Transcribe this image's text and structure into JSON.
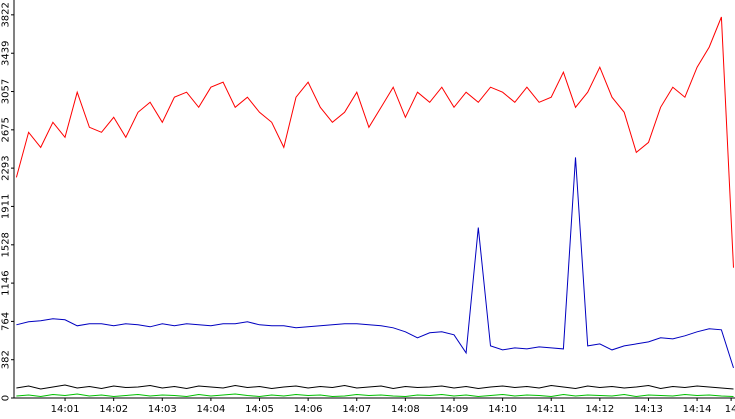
{
  "chart_data": {
    "type": "line",
    "x": [
      0,
      0.25,
      0.5,
      0.75,
      1,
      1.25,
      1.5,
      1.75,
      2,
      2.25,
      2.5,
      2.75,
      3,
      3.25,
      3.5,
      3.75,
      4,
      4.25,
      4.5,
      4.75,
      5,
      5.25,
      5.5,
      5.75,
      6,
      6.25,
      6.5,
      6.75,
      7,
      7.25,
      7.5,
      7.75,
      8,
      8.25,
      8.5,
      8.75,
      9,
      9.25,
      9.5,
      9.75,
      10,
      10.25,
      10.5,
      10.75,
      11,
      11.25,
      11.5,
      11.75,
      12,
      12.25,
      12.5,
      12.75,
      13,
      13.25,
      13.5,
      13.75,
      14,
      14.25,
      14.5,
      14.75
    ],
    "series": [
      {
        "color": "#ff0000",
        "values": [
          2200,
          2650,
          2500,
          2750,
          2600,
          3050,
          2700,
          2650,
          2800,
          2600,
          2850,
          2950,
          2750,
          3000,
          3050,
          2900,
          3100,
          3150,
          2900,
          3000,
          2850,
          2750,
          2500,
          3000,
          3150,
          2900,
          2750,
          2850,
          3050,
          2700,
          2900,
          3100,
          2800,
          3050,
          2950,
          3100,
          2900,
          3050,
          2950,
          3100,
          3050,
          2950,
          3100,
          2950,
          3000,
          3250,
          2900,
          3050,
          3300,
          3000,
          2850,
          2450,
          2550,
          2900,
          3100,
          3000,
          3300,
          3500,
          3800,
          1300
        ]
      },
      {
        "color": "#0000c0",
        "values": [
          730,
          760,
          770,
          790,
          780,
          720,
          740,
          740,
          720,
          740,
          730,
          710,
          740,
          720,
          740,
          730,
          720,
          740,
          740,
          760,
          730,
          720,
          720,
          700,
          710,
          720,
          730,
          740,
          740,
          730,
          720,
          700,
          660,
          600,
          650,
          660,
          630,
          450,
          1700,
          520,
          480,
          500,
          490,
          510,
          500,
          490,
          2400,
          520,
          540,
          480,
          520,
          540,
          560,
          600,
          590,
          620,
          660,
          690,
          680,
          300
        ]
      },
      {
        "color": "#000000",
        "values": [
          100,
          120,
          90,
          110,
          130,
          100,
          115,
          95,
          120,
          105,
          110,
          125,
          100,
          115,
          95,
          120,
          110,
          100,
          125,
          105,
          115,
          95,
          110,
          120,
          100,
          115,
          105,
          125,
          100,
          110,
          120,
          95,
          115,
          105,
          110,
          120,
          100,
          115,
          95,
          110,
          120,
          105,
          115,
          100,
          125,
          110,
          95,
          120,
          105,
          115,
          100,
          110,
          125,
          95,
          115,
          105,
          120,
          110,
          100,
          90
        ]
      },
      {
        "color": "#00c000",
        "values": [
          20,
          30,
          15,
          35,
          25,
          40,
          20,
          30,
          15,
          25,
          35,
          20,
          30,
          25,
          15,
          35,
          20,
          30,
          40,
          25,
          15,
          30,
          20,
          35,
          25,
          30,
          15,
          20,
          35,
          25,
          30,
          20,
          15,
          30,
          25,
          35,
          20,
          30,
          15,
          25,
          35,
          20,
          30,
          25,
          15,
          35,
          20,
          30,
          25,
          20,
          35,
          15,
          30,
          25,
          20,
          35,
          25,
          30,
          20,
          15
        ]
      }
    ],
    "xlim": [
      -0.05,
      14.78
    ],
    "xticks": [
      {
        "value": 1,
        "label": "14:01"
      },
      {
        "value": 2,
        "label": "14:02"
      },
      {
        "value": 3,
        "label": "14:03"
      },
      {
        "value": 4,
        "label": "14:04"
      },
      {
        "value": 5,
        "label": "14:05"
      },
      {
        "value": 6,
        "label": "14:06"
      },
      {
        "value": 7,
        "label": "14:07"
      },
      {
        "value": 8,
        "label": "14:08"
      },
      {
        "value": 9,
        "label": "14:09"
      },
      {
        "value": 10,
        "label": "14:10"
      },
      {
        "value": 11,
        "label": "14:11"
      },
      {
        "value": 12,
        "label": "14:12"
      },
      {
        "value": 13,
        "label": "14:13"
      },
      {
        "value": 14,
        "label": "14:14"
      },
      {
        "value": 14.7,
        "label": "14"
      }
    ],
    "ylim": [
      0,
      3970
    ],
    "yticks": [
      0,
      382,
      764,
      1146,
      1528,
      1911,
      2293,
      2675,
      3057,
      3439,
      3822
    ]
  }
}
